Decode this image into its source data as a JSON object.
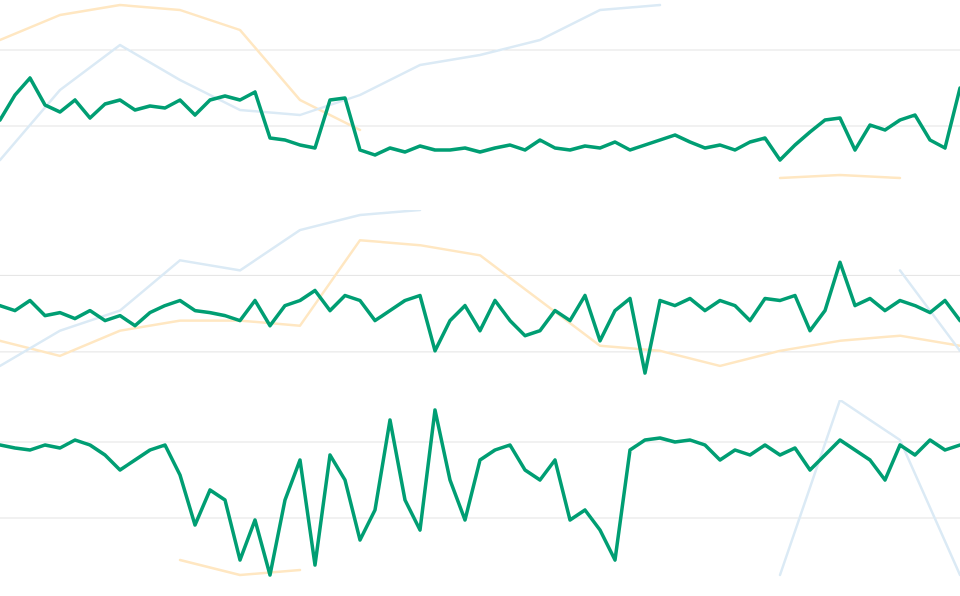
{
  "chart_data": [
    {
      "type": "line",
      "ylim": [
        -56,
        126
      ],
      "yticks": [
        0,
        76
      ],
      "grid": true,
      "series": [
        {
          "color": "#ffe7c2",
          "values": [
            86,
            111,
            121,
            116,
            96,
            26,
            -4,
            null,
            null,
            null,
            null,
            null,
            null,
            -52,
            -49,
            -52,
            null
          ]
        },
        {
          "color": "#dbeaf5",
          "values": [
            -34,
            36,
            81,
            46,
            16,
            11,
            31,
            61,
            71,
            86,
            116,
            121,
            null,
            null,
            null,
            null,
            null
          ]
        },
        {
          "color": "#009e73",
          "values": [
            6,
            31,
            48,
            21,
            14,
            26,
            8,
            22,
            26,
            16,
            20,
            18,
            26,
            11,
            26,
            30,
            26,
            34,
            -12,
            -14,
            -19,
            -22,
            26,
            28,
            -24,
            -29,
            -22,
            -26,
            -20,
            -24,
            -24,
            -22,
            -26,
            -22,
            -19,
            -24,
            -14,
            -22,
            -24,
            -20,
            -22,
            -16,
            -24,
            -19,
            -14,
            -9,
            -16,
            -22,
            -19,
            -24,
            -16,
            -12,
            -34,
            -19,
            -6,
            6,
            8,
            -24,
            1,
            -4,
            6,
            11,
            -14,
            -22,
            38
          ]
        }
      ]
    },
    {
      "type": "line",
      "ylim": [
        -29,
        141
      ],
      "yticks": [
        0,
        76
      ],
      "grid": true,
      "series": [
        {
          "color": "#ffe7c2",
          "values": [
            11,
            -4,
            21,
            31,
            31,
            26,
            111,
            106,
            96,
            51,
            6,
            1,
            -14,
            1,
            11,
            16,
            6
          ]
        },
        {
          "color": "#dbeaf5",
          "values": [
            -14,
            21,
            41,
            91,
            81,
            121,
            136,
            141,
            null,
            null,
            null,
            null,
            null,
            null,
            null,
            81,
            1
          ]
        },
        {
          "color": "#009e73",
          "values": [
            46,
            41,
            51,
            36,
            39,
            33,
            41,
            31,
            36,
            26,
            39,
            46,
            51,
            41,
            39,
            36,
            31,
            51,
            26,
            46,
            51,
            61,
            41,
            56,
            51,
            31,
            41,
            51,
            56,
            1,
            31,
            46,
            21,
            51,
            31,
            16,
            21,
            41,
            31,
            56,
            11,
            41,
            53,
            -21,
            51,
            46,
            53,
            41,
            51,
            46,
            31,
            53,
            51,
            56,
            21,
            41,
            89,
            46,
            53,
            41,
            51,
            46,
            39,
            51,
            31
          ]
        }
      ]
    },
    {
      "type": "line",
      "ylim": [
        -60,
        118
      ],
      "yticks": [
        0,
        76
      ],
      "grid": true,
      "series": [
        {
          "color": "#ffe7c2",
          "values": [
            null,
            null,
            null,
            -42,
            -57,
            -52,
            null,
            null,
            null,
            null,
            null,
            null,
            null,
            null,
            null,
            null,
            null
          ]
        },
        {
          "color": "#dbeaf5",
          "values": [
            null,
            null,
            null,
            null,
            null,
            null,
            null,
            null,
            null,
            null,
            null,
            null,
            null,
            -57,
            118,
            78,
            -57
          ]
        },
        {
          "color": "#009e73",
          "values": [
            73,
            70,
            68,
            73,
            70,
            78,
            73,
            63,
            48,
            58,
            68,
            73,
            43,
            -7,
            28,
            18,
            -42,
            -2,
            -57,
            18,
            58,
            -47,
            63,
            38,
            -22,
            8,
            98,
            18,
            -12,
            108,
            38,
            -2,
            58,
            68,
            73,
            48,
            38,
            58,
            -2,
            8,
            -12,
            -42,
            68,
            78,
            80,
            76,
            78,
            73,
            58,
            68,
            63,
            73,
            63,
            70,
            48,
            63,
            78,
            68,
            58,
            38,
            73,
            63,
            78,
            68,
            73
          ]
        }
      ]
    }
  ]
}
